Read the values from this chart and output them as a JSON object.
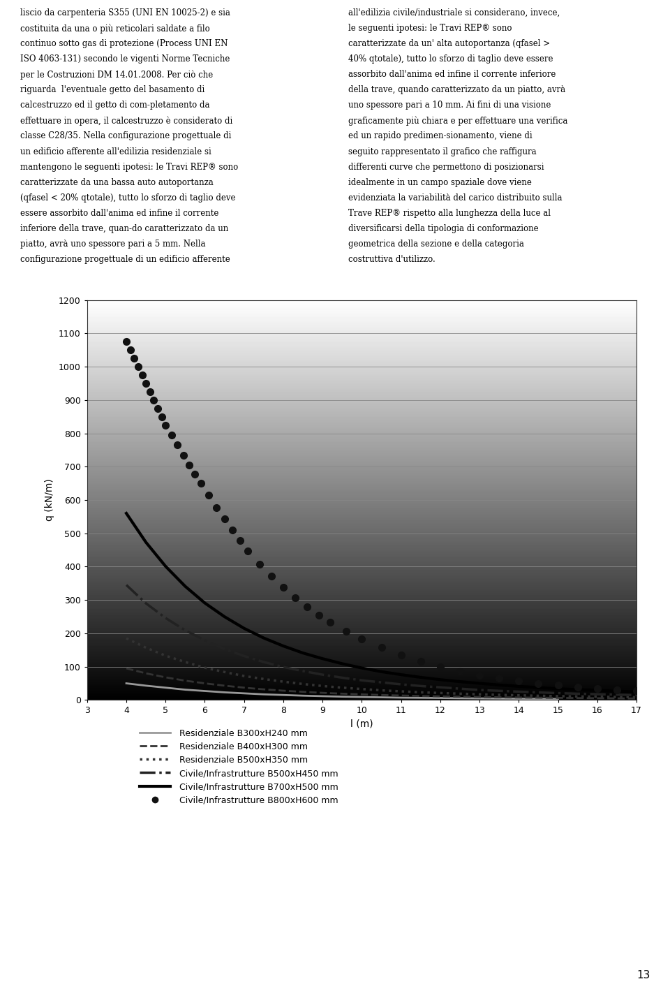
{
  "xlabel": "l (m)",
  "ylabel": "q (kN/m)",
  "xlim": [
    3,
    17
  ],
  "ylim": [
    0,
    1200
  ],
  "xticks": [
    3,
    4,
    5,
    6,
    7,
    8,
    9,
    10,
    11,
    12,
    13,
    14,
    15,
    16,
    17
  ],
  "yticks": [
    0,
    100,
    200,
    300,
    400,
    500,
    600,
    700,
    800,
    900,
    1000,
    1100,
    1200
  ],
  "ytick_labels": [
    "0",
    "100",
    "200",
    "300",
    "400",
    "500",
    "600",
    "700",
    "800",
    "900",
    "1000",
    "1100",
    "1200"
  ],
  "series": [
    {
      "label": "Residenziale B300xH240 mm",
      "color": "#999999",
      "linestyle": "solid",
      "linewidth": 2.0,
      "marker": "None",
      "x": [
        4,
        4.5,
        5,
        5.5,
        6,
        6.5,
        7,
        7.5,
        8,
        8.5,
        9,
        9.5,
        10,
        10.5,
        11,
        11.5,
        12,
        12.5,
        13,
        13.5,
        14,
        14.5,
        15
      ],
      "y": [
        50,
        43,
        37,
        31,
        27,
        23,
        20,
        17,
        15,
        13,
        11.5,
        10,
        9,
        8,
        7,
        6.5,
        6,
        5.3,
        4.8,
        4.3,
        3.9,
        3.5,
        3.2
      ]
    },
    {
      "label": "Residenziale B400xH300 mm",
      "color": "#333333",
      "linestyle": "--",
      "linewidth": 2.0,
      "marker": "None",
      "x": [
        4,
        4.5,
        5,
        5.5,
        6,
        6.5,
        7,
        7.5,
        8,
        8.5,
        9,
        9.5,
        10,
        10.5,
        11,
        11.5,
        12,
        12.5,
        13,
        13.5,
        14,
        14.5,
        15,
        15.5,
        16,
        16.5,
        17
      ],
      "y": [
        95,
        80,
        68,
        58,
        50,
        43,
        37,
        32,
        28,
        24.5,
        21.5,
        19,
        17,
        15,
        13.5,
        12,
        11,
        10,
        9,
        8.2,
        7.5,
        6.9,
        6.3,
        5.8,
        5.4,
        5.0,
        4.6
      ]
    },
    {
      "label": "Residenziale B500xH350 mm",
      "color": "#333333",
      "linestyle": ":",
      "linewidth": 2.5,
      "marker": "None",
      "x": [
        4,
        4.5,
        5,
        5.5,
        6,
        6.5,
        7,
        7.5,
        8,
        8.5,
        9,
        9.5,
        10,
        10.5,
        11,
        11.5,
        12,
        12.5,
        13,
        13.5,
        14,
        14.5,
        15,
        15.5,
        16,
        16.5,
        17
      ],
      "y": [
        185,
        157,
        133,
        114,
        97,
        84,
        72,
        63,
        55,
        48,
        42,
        37,
        33,
        29,
        26,
        23,
        21,
        19,
        17,
        15.5,
        14,
        12.7,
        11.6,
        10.6,
        9.8,
        9.0,
        8.3
      ]
    },
    {
      "label": "Civile/Infrastrutture B500xH450 mm",
      "color": "#222222",
      "linestyle": "-.",
      "linewidth": 2.5,
      "marker": "None",
      "x": [
        4,
        4.5,
        5,
        5.5,
        6,
        6.5,
        7,
        7.5,
        8,
        8.5,
        9,
        9.5,
        10,
        10.5,
        11,
        11.5,
        12,
        12.5,
        13,
        13.5,
        14,
        14.5,
        15,
        15.5,
        16,
        16.5,
        17
      ],
      "y": [
        345,
        290,
        246,
        209,
        179,
        153,
        132,
        114,
        99,
        87,
        76,
        67,
        59,
        53,
        47,
        42,
        38,
        34,
        30,
        27.5,
        25,
        22.7,
        20.7,
        18.9,
        17.4,
        16.0,
        14.8
      ]
    },
    {
      "label": "Civile/Infrastrutture B700xH500 mm",
      "color": "#000000",
      "linestyle": "solid",
      "linewidth": 3.0,
      "marker": "None",
      "x": [
        4,
        4.5,
        5,
        5.5,
        6,
        6.5,
        7,
        7.5,
        8,
        8.5,
        9,
        9.5,
        10,
        10.5,
        11,
        11.5,
        12,
        12.5,
        13,
        13.5,
        14,
        14.5,
        15,
        15.5,
        16,
        16.5,
        17
      ],
      "y": [
        560,
        473,
        401,
        341,
        291,
        250,
        215,
        186,
        162,
        141,
        124,
        109,
        96,
        85,
        76,
        68,
        61,
        55,
        50,
        45,
        41,
        37,
        34,
        31,
        29,
        26.5,
        24.5
      ]
    },
    {
      "label": "Civile/Infrastrutture B800xH600 mm",
      "color": "#111111",
      "linestyle": "None",
      "linewidth": 0,
      "marker": "o",
      "markersize": 7,
      "x": [
        4.0,
        4.1,
        4.2,
        4.3,
        4.4,
        4.5,
        4.6,
        4.7,
        4.8,
        4.9,
        5.0,
        5.15,
        5.3,
        5.45,
        5.6,
        5.75,
        5.9,
        6.1,
        6.3,
        6.5,
        6.7,
        6.9,
        7.1,
        7.4,
        7.7,
        8.0,
        8.3,
        8.6,
        8.9,
        9.2,
        9.6,
        10.0,
        10.5,
        11.0,
        11.5,
        12.0,
        12.5,
        13.0,
        13.5,
        14.0,
        14.5,
        15.0,
        15.5,
        16.0,
        16.5,
        17.0
      ],
      "y": [
        1075,
        1050,
        1025,
        1000,
        975,
        950,
        925,
        900,
        875,
        850,
        825,
        795,
        765,
        735,
        705,
        678,
        650,
        615,
        578,
        543,
        510,
        478,
        447,
        408,
        371,
        338,
        307,
        280,
        255,
        233,
        207,
        183,
        157,
        135,
        116,
        100,
        86,
        74,
        65,
        57,
        50,
        44,
        39,
        35,
        31,
        28
      ]
    }
  ],
  "legend_entries": [
    {
      "label": "Residenziale B300xH240 mm",
      "color": "#999999",
      "linestyle": "solid",
      "linewidth": 2.0,
      "marker": "None"
    },
    {
      "label": "Residenziale B400xH300 mm",
      "color": "#333333",
      "linestyle": "--",
      "linewidth": 2.0,
      "marker": "None"
    },
    {
      "label": "Residenziale B500xH350 mm",
      "color": "#333333",
      "linestyle": ":",
      "linewidth": 2.5,
      "marker": "None"
    },
    {
      "label": "Civile/Infrastrutture B500xH450 mm",
      "color": "#222222",
      "linestyle": "-.",
      "linewidth": 2.5,
      "marker": "None"
    },
    {
      "label": "Civile/Infrastrutture B700xH500 mm",
      "color": "#000000",
      "linestyle": "solid",
      "linewidth": 3.0,
      "marker": "None"
    },
    {
      "label": "Civile/Infrastrutture B800xH600 mm",
      "color": "#111111",
      "linestyle": "None",
      "linewidth": 0,
      "marker": "o"
    }
  ],
  "text_left": [
    "liscio da carpenteria S355 (UNI EN 10025-2) e sia",
    "costituita da una o più reticolari saldate a filo",
    "continuo sotto gas di protezione (Process UNI EN",
    "ISO 4063-131) secondo le vigenti Norme Tecniche",
    "per le Costruzioni DM 14.01.2008. Per ciò che",
    "riguarda  l'eventuale getto del basamento di",
    "calcestruzzo ed il getto di com-pletamento da",
    "effettuare in opera, il calcestruzzo è considerato di",
    "classe C28/35. Nella configurazione progettuale di",
    "un edificio afferente all'edilizia residenziale si",
    "mantengono le seguenti ipotesi: le Travi REP® sono",
    "caratterizzate da una bassa auto autoportanza",
    "(qfasel < 20% qtotale), tutto lo sforzo di taglio deve",
    "essere assorbito dall'anima ed infine il corrente",
    "inferiore della trave, quan-do caratterizzato da un",
    "piatto, avrà uno spessore pari a 5 mm. Nella",
    "configurazione progettuale di un edificio afferente"
  ],
  "text_right": [
    "all'edilizia civile/industriale si considerano, invece,",
    "le seguenti ipotesi: le Travi REP® sono",
    "caratterizzate da un' alta autoportanza (qfasel >",
    "40% qtotale), tutto lo sforzo di taglio deve essere",
    "assorbito dall'anima ed infine il corrente inferiore",
    "della trave, quando caratterizzato da un piatto, avrà",
    "uno spessore pari a 10 mm. Ai fini di una visione",
    "graficamente più chiara e per effettuare una verifica",
    "ed un rapido predimen-sionamento, viene di",
    "seguito rappresentato il grafico che raffigura",
    "differenti curve che permettono di posizionarsi",
    "idealmente in un campo spaziale dove viene",
    "evidenziata la variabilità del carico distribuito sulla",
    "Trave REP® rispetto alla lunghezza della luce al",
    "diversificarsi della tipologia di conformazione",
    "geometrica della sezione e della categoria",
    "costruttiva d'utilizzo."
  ],
  "page_number": "13"
}
